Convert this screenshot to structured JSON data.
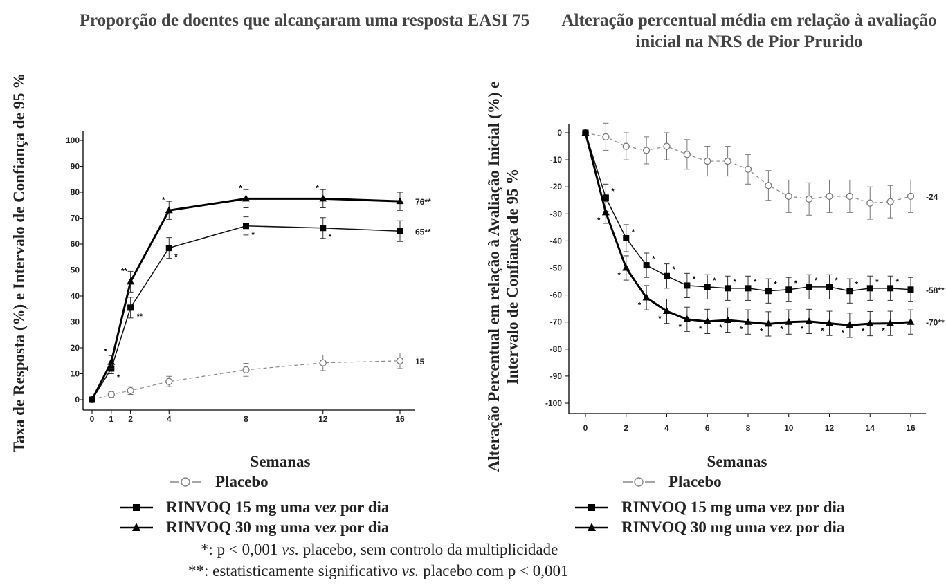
{
  "legend": {
    "placebo": "Placebo",
    "r15": "RINVOQ 15 mg uma vez por dia",
    "r30": "RINVOQ 30 mg uma vez por dia"
  },
  "footnotes": {
    "note1_marker": "*",
    "note1_a": ": p < 0,001 ",
    "note1_vs": "vs.",
    "note1_b": " placebo, sem controlo da multiplicidade",
    "note2_marker": "**",
    "note2_a": ": estatisticamente significativo ",
    "note2_vs": "vs.",
    "note2_b": " placebo com p < 0,001"
  },
  "chart_data": [
    {
      "type": "line",
      "title": "Proporção de doentes que alcançaram uma resposta EASI 75",
      "ylabel": "Taxa de Resposta (%) e Intervalo de Confiança de 95 %",
      "xlabel": "Semanas",
      "xlim": [
        0,
        16
      ],
      "ylim": [
        0,
        100
      ],
      "xticks": [
        0,
        1,
        2,
        4,
        8,
        12,
        16
      ],
      "yticks": [
        0,
        10,
        20,
        30,
        40,
        50,
        60,
        70,
        80,
        90,
        100
      ],
      "series": [
        {
          "name": "Placebo",
          "style": "dashed",
          "marker": "circle-open",
          "color": "#888888",
          "x": [
            0,
            1,
            2,
            4,
            8,
            12,
            16
          ],
          "y": [
            0,
            2,
            3.5,
            7,
            11.5,
            14.2,
            15
          ],
          "err": [
            0,
            1,
            1.5,
            2,
            2.5,
            3,
            3
          ],
          "annotations": [
            "",
            "",
            "",
            "",
            "",
            "",
            ""
          ],
          "end_label": "15"
        },
        {
          "name": "RINVOQ 15 mg uma vez por dia",
          "style": "solid-thin",
          "marker": "square",
          "color": "#111111",
          "x": [
            0,
            1,
            2,
            4,
            8,
            12,
            16
          ],
          "y": [
            0,
            12,
            35.5,
            58.5,
            67,
            66.2,
            65
          ],
          "err": [
            0,
            2,
            4,
            4,
            3.5,
            4,
            4
          ],
          "annotations": [
            "",
            "*",
            "**",
            "*",
            "*",
            "*",
            ""
          ],
          "end_label": "65**"
        },
        {
          "name": "RINVOQ 30 mg uma vez por dia",
          "style": "solid-thick",
          "marker": "triangle",
          "color": "#000000",
          "x": [
            0,
            1,
            2,
            4,
            8,
            12,
            16
          ],
          "y": [
            0,
            14.5,
            45.5,
            73,
            77.5,
            77.5,
            76.5
          ],
          "err": [
            0,
            2.5,
            4,
            3.5,
            3.5,
            3.5,
            3.5
          ],
          "annotations": [
            "",
            "*",
            "**",
            "*",
            "*",
            "*",
            ""
          ],
          "end_label": "76**"
        }
      ]
    },
    {
      "type": "line",
      "title": "Alteração percentual média em relação à avaliação inicial na NRS de Pior Prurido",
      "ylabel": "Alteração Percentual em relação à Avaliação Inicial (%) e Intervalo de Confiança de 95 %",
      "xlabel": "Semanas",
      "xlim": [
        0,
        16
      ],
      "ylim": [
        -100,
        0
      ],
      "xticks": [
        0,
        2,
        4,
        6,
        8,
        10,
        12,
        14,
        16
      ],
      "yticks": [
        0,
        -10,
        -20,
        -30,
        -40,
        -50,
        -60,
        -70,
        -80,
        -90,
        -100
      ],
      "series": [
        {
          "name": "Placebo",
          "style": "dashed",
          "marker": "circle-open",
          "color": "#888888",
          "x": [
            0,
            1,
            2,
            3,
            4,
            5,
            6,
            7,
            8,
            9,
            10,
            11,
            12,
            13,
            14,
            15,
            16
          ],
          "y": [
            0,
            -1.5,
            -5,
            -6.5,
            -5,
            -8,
            -10.5,
            -10.5,
            -13.5,
            -19.5,
            -23.5,
            -24.5,
            -23.5,
            -23.5,
            -26,
            -25.5,
            -23.5
          ],
          "err": [
            0,
            5,
            5,
            5,
            5,
            5.5,
            5.5,
            5.5,
            5.5,
            5.5,
            6,
            6,
            6,
            6,
            6,
            6,
            6
          ],
          "annotations": [],
          "end_label": "-24"
        },
        {
          "name": "RINVOQ 15 mg uma vez por dia",
          "style": "solid-thin",
          "marker": "square",
          "color": "#111111",
          "x": [
            0,
            1,
            2,
            3,
            4,
            5,
            6,
            7,
            8,
            9,
            10,
            11,
            12,
            13,
            14,
            15,
            16
          ],
          "y": [
            0,
            -24,
            -39,
            -49,
            -53,
            -56.5,
            -57,
            -57.5,
            -57.5,
            -58.5,
            -58,
            -57,
            -57,
            -58.5,
            -57.5,
            -57.5,
            -58
          ],
          "err": [
            0,
            5,
            5,
            4.5,
            4.5,
            4.5,
            4.5,
            4.5,
            4.5,
            4.5,
            4.5,
            4.5,
            4.5,
            4.5,
            4.5,
            4.5,
            4.5
          ],
          "annotations": [
            "",
            "*",
            "*",
            "*",
            "*",
            "*",
            "*",
            "*",
            "*",
            "*",
            "*",
            "*",
            "*",
            "*",
            "*",
            "*",
            ""
          ],
          "end_label": "-58**"
        },
        {
          "name": "RINVOQ 30 mg uma vez por dia",
          "style": "solid-thick",
          "marker": "triangle",
          "color": "#000000",
          "x": [
            0,
            1,
            2,
            3,
            4,
            5,
            6,
            7,
            8,
            9,
            10,
            11,
            12,
            13,
            14,
            15,
            16
          ],
          "y": [
            0,
            -29.5,
            -50,
            -61,
            -66,
            -69,
            -69.8,
            -69.3,
            -70,
            -70.7,
            -70,
            -69.8,
            -70.5,
            -71.2,
            -70.6,
            -70.5,
            -70
          ],
          "err": [
            0,
            4,
            4.5,
            4.5,
            4.5,
            4.5,
            4.5,
            4.5,
            4.5,
            4.5,
            4.5,
            4.5,
            4.5,
            4.5,
            4.5,
            4.5,
            4.5
          ],
          "annotations": [
            "",
            "*",
            "*",
            "*",
            "*",
            "*",
            "*",
            "*",
            "*",
            "*",
            "*",
            "*",
            "*",
            "*",
            "*",
            "*",
            ""
          ],
          "end_label": "-70**"
        }
      ]
    }
  ]
}
